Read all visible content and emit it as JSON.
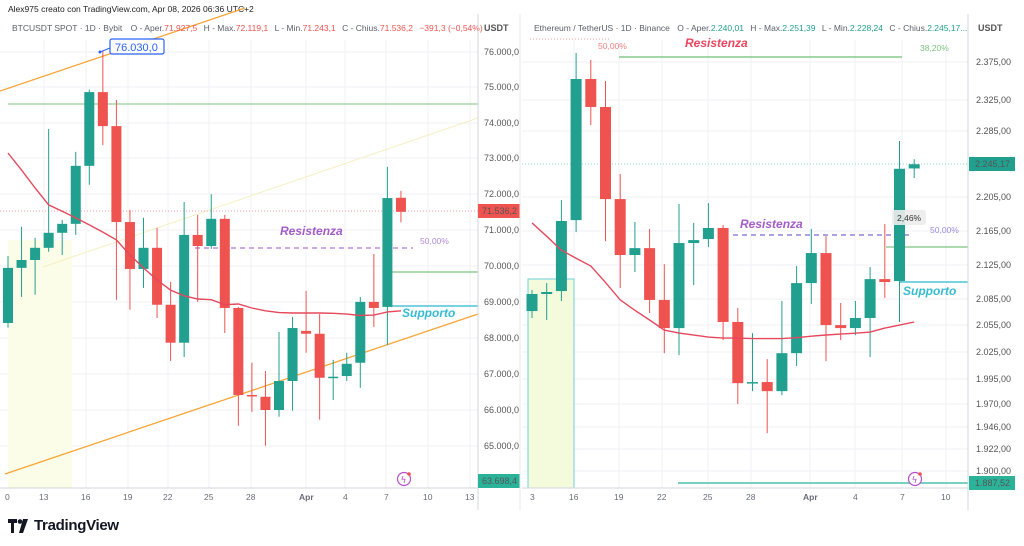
{
  "byline": "Alex975 creato con TradingView.com, Apr 08, 2026 06:36 UTC+2",
  "colors": {
    "up": "#22a08f",
    "down": "#ef5350",
    "ma": "#e5485c",
    "support": "#4fc3d6",
    "resistance_line": "#9b59d0",
    "accent_blue": "#2962ff",
    "channel": "#f7a536"
  },
  "left": {
    "header": {
      "symbol": "BTCUSDT SPOT · 1D · Bybit",
      "o_label": "O - Aper.",
      "o": "71.927,5",
      "h_label": "H - Max.",
      "h": "72.119,1",
      "l_label": "L - Min.",
      "l": "71.243,1",
      "c_label": "C - Chius.",
      "c": "71.536,2",
      "change": "−391,3 (−0,54%)"
    },
    "currency": "USDT",
    "axis_labels": [
      "76.000,0",
      "75.000,0",
      "74.000,0",
      "73.000,0",
      "72.000,0",
      "71.000,0",
      "70.000,0",
      "69.000,0",
      "68.000,0",
      "67.000,0",
      "66.000,0",
      "65.000,0"
    ],
    "last_price_tag": "71.536,2",
    "low_tag": "63.698,4",
    "time_labels": [
      "0",
      "13",
      "16",
      "19",
      "22",
      "25",
      "28",
      "Apr",
      "4",
      "7",
      "10",
      "13"
    ],
    "callout": "76.030,0",
    "resistance_label": "Resistenza",
    "resistance_pct": "50,00%",
    "support_label": "Supporto",
    "lightning_icon": "lightning-icon"
  },
  "right": {
    "header": {
      "symbol": "Ethereum / TetherUS · 1D · Binance",
      "o_label": "O - Aper.",
      "o": "2.240,01",
      "h_label": "H - Max.",
      "h": "2.251,39",
      "l_label": "L - Min.",
      "l": "2.228,24",
      "c_label": "C - Chius.",
      "c": "2.245,17..."
    },
    "currency": "USDT",
    "axis_labels": [
      "2.375,00",
      "2.325,00",
      "2.285,00",
      "2.205,00",
      "2.165,00",
      "2.125,00",
      "2.085,00",
      "2.055,00",
      "2.025,00",
      "1.995,00",
      "1.970,00",
      "1.946,00",
      "1.922,00",
      "1.900,00"
    ],
    "last_price_tag": "2.245,17",
    "low_tag": "1.887,52",
    "time_labels": [
      "3",
      "16",
      "19",
      "22",
      "25",
      "28",
      "Apr",
      "4",
      "7",
      "10"
    ],
    "top_pct_red": "50,00%",
    "top_resistance_label": "Resistenza",
    "top_fib_pct": "38,20%",
    "resistance_label": "Resistenza",
    "resistance_pct": "50,00%",
    "move_pct": "2,46%",
    "support_label": "Supporto",
    "lightning_icon": "lightning-icon"
  },
  "footer": {
    "brand": "TradingView"
  },
  "chart_data": [
    {
      "type": "candlestick",
      "title": "BTCUSDT SPOT · 1D · Bybit",
      "ylabel": "USDT",
      "ylim": [
        63698.4,
        76500
      ],
      "y_scale": "linear",
      "dates": [
        "Mar 10",
        "Mar 11",
        "Mar 12",
        "Mar 13",
        "Mar 14",
        "Mar 15",
        "Mar 16",
        "Mar 17",
        "Mar 18",
        "Mar 19",
        "Mar 20",
        "Mar 21",
        "Mar 22",
        "Mar 23",
        "Mar 24",
        "Mar 25",
        "Mar 26",
        "Mar 27",
        "Mar 28",
        "Mar 29",
        "Mar 30",
        "Mar 31",
        "Apr 1",
        "Apr 2",
        "Apr 3",
        "Apr 4",
        "Apr 5",
        "Apr 6",
        "Apr 7",
        "Apr 8"
      ],
      "ohlc": [
        [
          68430,
          70300,
          68300,
          69970
        ],
        [
          69970,
          71120,
          69160,
          70190
        ],
        [
          70190,
          70810,
          69220,
          70530
        ],
        [
          70530,
          73850,
          70420,
          70950
        ],
        [
          70950,
          71310,
          70330,
          71200
        ],
        [
          71200,
          73210,
          70890,
          72820
        ],
        [
          72820,
          74950,
          72290,
          74880
        ],
        [
          74880,
          76030,
          73400,
          73930
        ],
        [
          73930,
          74660,
          69080,
          71250
        ],
        [
          71250,
          71590,
          68800,
          69940
        ],
        [
          69940,
          71370,
          69410,
          70530
        ],
        [
          70530,
          71090,
          68570,
          68940
        ],
        [
          68940,
          69580,
          67370,
          67880
        ],
        [
          67880,
          71810,
          67480,
          70890
        ],
        [
          70890,
          71450,
          69020,
          70580
        ],
        [
          70580,
          72030,
          70500,
          71340
        ],
        [
          71340,
          71450,
          68150,
          68850
        ],
        [
          68850,
          68880,
          65560,
          66420
        ],
        [
          66420,
          67320,
          65950,
          66400
        ],
        [
          66370,
          67090,
          65000,
          66000
        ],
        [
          66000,
          68180,
          65810,
          66810
        ],
        [
          66810,
          68600,
          65980,
          68290
        ],
        [
          68210,
          69330,
          67600,
          68130
        ],
        [
          68130,
          68680,
          65730,
          66900
        ],
        [
          66900,
          67400,
          66280,
          66930
        ],
        [
          66950,
          67600,
          66810,
          67290
        ],
        [
          67320,
          69160,
          66620,
          69020
        ],
        [
          69020,
          70360,
          68320,
          68850
        ],
        [
          68880,
          72790,
          67820,
          71920
        ],
        [
          71927.5,
          72119.1,
          71243.1,
          71536.2
        ]
      ],
      "moving_average": [
        73180,
        72700,
        72200,
        71730,
        71550,
        71365,
        71170,
        70970,
        70750,
        70330,
        69970,
        69630,
        69350,
        69190,
        69100,
        69080,
        68940,
        68960,
        68850,
        68770,
        68720,
        68710,
        68710,
        68710,
        68700,
        68680,
        68640,
        68650,
        68740,
        68770
      ],
      "levels": {
        "resistance_50pct": 70530,
        "support": 69000,
        "green_upper": 74550,
        "green_short": 69850,
        "last_price": 71536.2,
        "low": 63698.4,
        "callout_high": 76030
      }
    },
    {
      "type": "candlestick",
      "title": "Ethereum / TetherUS · 1D · Binance",
      "ylabel": "USDT",
      "ylim": [
        1887.52,
        2390
      ],
      "y_scale": "log",
      "dates": [
        "Mar 13",
        "Mar 14",
        "Mar 15",
        "Mar 16",
        "Mar 17",
        "Mar 18",
        "Mar 19",
        "Mar 20",
        "Mar 21",
        "Mar 22",
        "Mar 23",
        "Mar 24",
        "Mar 25",
        "Mar 26",
        "Mar 27",
        "Mar 28",
        "Mar 29",
        "Mar 30",
        "Mar 31",
        "Apr 1",
        "Apr 2",
        "Apr 3",
        "Apr 4",
        "Apr 5",
        "Apr 6",
        "Apr 7",
        "Apr 8"
      ],
      "ohlc": [
        [
          2071.1,
          2095.2,
          2063.2,
          2090.6
        ],
        [
          2090.6,
          2103.2,
          2060.9,
          2092.9
        ],
        [
          2094.0,
          2201.4,
          2082.6,
          2176.2
        ],
        [
          2177.3,
          2386.8,
          2163.0,
          2352.9
        ],
        [
          2352.9,
          2377.6,
          2294.2,
          2317.0
        ],
        [
          2317.0,
          2350.3,
          2152.3,
          2202.6
        ],
        [
          2202.6,
          2233.2,
          2097.5,
          2135.9
        ],
        [
          2135.9,
          2175.0,
          2116.0,
          2144.0
        ],
        [
          2144.0,
          2166.7,
          2068.8,
          2083.8
        ],
        [
          2083.8,
          2125.2,
          2023.7,
          2051.8
        ],
        [
          2051.8,
          2196.6,
          2021.5,
          2150.0
        ],
        [
          2150.0,
          2173.9,
          2100.9,
          2153.5
        ],
        [
          2154.7,
          2197.8,
          2145.2,
          2167.9
        ],
        [
          2167.9,
          2171.5,
          2038.3,
          2058.7
        ],
        [
          2058.7,
          2074.6,
          1967.9,
          1990.6
        ],
        [
          1990.6,
          2046.1,
          1981.9,
          1991.8
        ],
        [
          1991.8,
          2017.1,
          1936.7,
          1981.9
        ],
        [
          1981.9,
          2082.6,
          1977.6,
          2023.7
        ],
        [
          2023.7,
          2123.0,
          2009.4,
          2103.2
        ],
        [
          2103.2,
          2166.7,
          2079.2,
          2138.2
        ],
        [
          2138.2,
          2158.3,
          2014.9,
          2055.2
        ],
        [
          2055.2,
          2080.3,
          2038.3,
          2051.8
        ],
        [
          2051.8,
          2082.6,
          2043.9,
          2063.2
        ],
        [
          2063.2,
          2121.8,
          2019.3,
          2107.8
        ],
        [
          2107.8,
          2172.7,
          2086.1,
          2104.4
        ],
        [
          2105.5,
          2274.1,
          2058.7,
          2239.6
        ],
        [
          2240.01,
          2251.39,
          2228.24,
          2245.17
        ]
      ],
      "moving_average": [
        2173.9,
        2158,
        2141.6,
        2132,
        2123,
        2104,
        2083.8,
        2072,
        2060.9,
        2049.5,
        2046.1,
        2043.9,
        2041.6,
        2040.5,
        2040.5,
        2040,
        2040,
        2040,
        2041,
        2042.7,
        2044,
        2045,
        2046,
        2047.3,
        2051.8,
        2055.2,
        2058.7
      ],
      "levels": {
        "top_fib_38_2": 2368,
        "top_50pct": 2403,
        "resistance_50pct": 2160,
        "green_short": 2142,
        "support": 2098,
        "last_price": 2245.17,
        "low": 1887.52
      }
    }
  ]
}
